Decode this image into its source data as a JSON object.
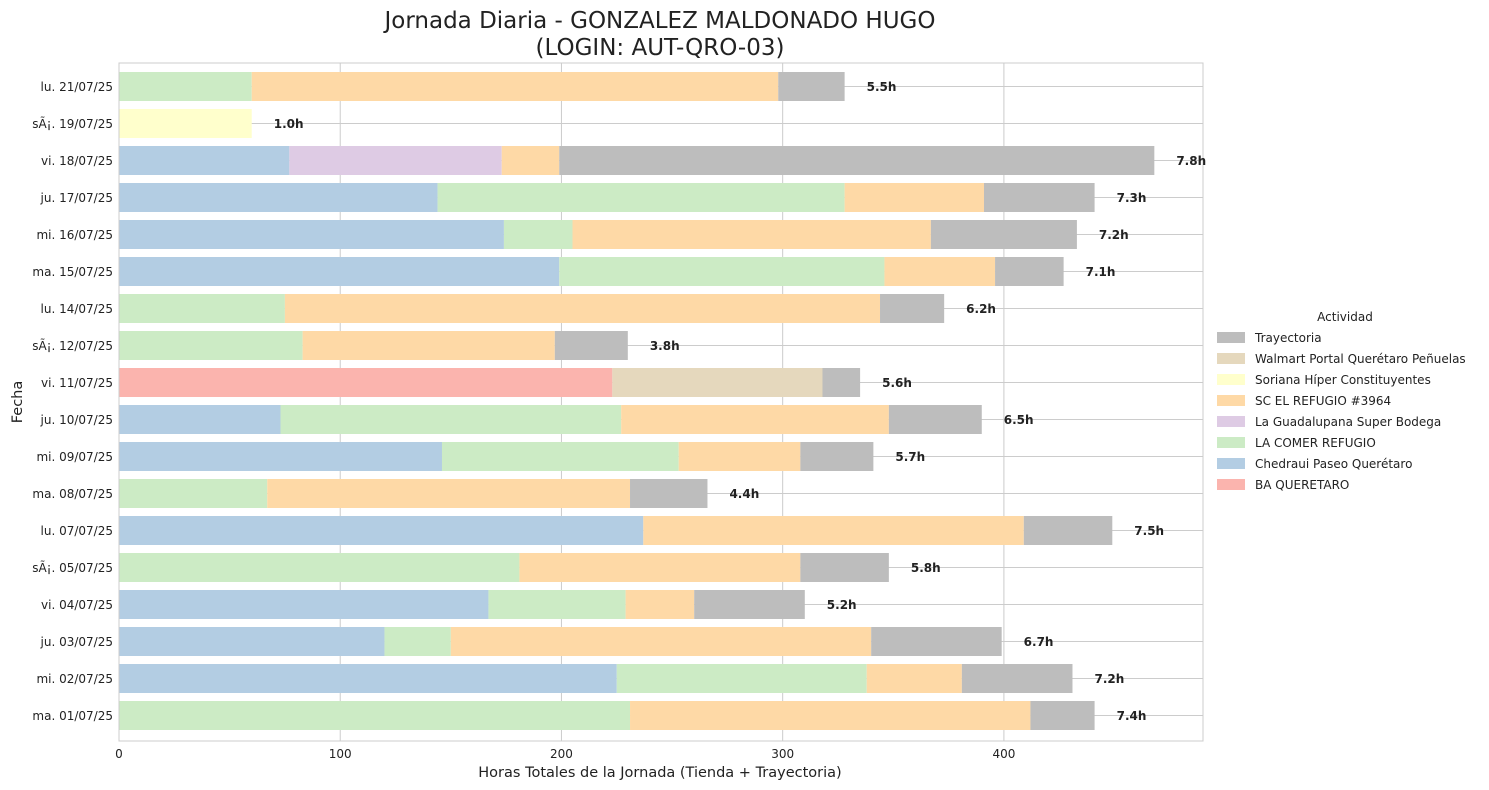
{
  "chart_data": {
    "type": "bar",
    "orientation": "horizontal",
    "stacked": true,
    "title_line1": "Jornada Diaria - GONZALEZ MALDONADO HUGO",
    "title_line2": "(LOGIN: AUT-QRO-03)",
    "xlabel": "Horas Totales de la Jornada (Tienda + Trayectoria)",
    "ylabel": "Fecha",
    "xlim": [
      0,
      490
    ],
    "xticks": [
      0,
      100,
      200,
      300,
      400
    ],
    "grid": true,
    "legend_title": "Actividad",
    "legend_placement": "center-right",
    "series": [
      {
        "name": "BA QUERETARO",
        "color": "#fbb4ae"
      },
      {
        "name": "Chedraui Paseo Querétaro",
        "color": "#b3cde3"
      },
      {
        "name": "LA COMER REFUGIO",
        "color": "#ccebc5"
      },
      {
        "name": "La Guadalupana Super Bodega",
        "color": "#decbe4"
      },
      {
        "name": "SC EL REFUGIO #3964",
        "color": "#fed9a6"
      },
      {
        "name": "Soriana Híper Constituyentes",
        "color": "#ffffcc"
      },
      {
        "name": "Walmart Portal Querétaro Peñuelas",
        "color": "#e5d8bd"
      },
      {
        "name": "Trayectoria",
        "color": "#bdbdbd"
      }
    ],
    "legend_order": [
      "Trayectoria",
      "Walmart Portal Querétaro Peñuelas",
      "Soriana Híper Constituyentes",
      "SC EL REFUGIO #3964",
      "La Guadalupana Super Bodega",
      "LA COMER REFUGIO",
      "Chedraui Paseo Querétaro",
      "BA QUERETARO"
    ],
    "rows": [
      {
        "label": "lu. 21/07/25",
        "total": "5.5h",
        "segments": [
          [
            "LA COMER REFUGIO",
            60
          ],
          [
            "SC EL REFUGIO #3964",
            238
          ],
          [
            "Trayectoria",
            30
          ]
        ]
      },
      {
        "label": "sÃ¡. 19/07/25",
        "total": "1.0h",
        "segments": [
          [
            "Soriana Híper Constituyentes",
            60
          ]
        ]
      },
      {
        "label": "vi. 18/07/25",
        "total": "7.8h",
        "segments": [
          [
            "Chedraui Paseo Querétaro",
            77
          ],
          [
            "La Guadalupana Super Bodega",
            96
          ],
          [
            "SC EL REFUGIO #3964",
            26
          ],
          [
            "Trayectoria",
            269
          ]
        ]
      },
      {
        "label": "ju. 17/07/25",
        "total": "7.3h",
        "segments": [
          [
            "Chedraui Paseo Querétaro",
            144
          ],
          [
            "LA COMER REFUGIO",
            184
          ],
          [
            "SC EL REFUGIO #3964",
            63
          ],
          [
            "Trayectoria",
            50
          ]
        ]
      },
      {
        "label": "mi. 16/07/25",
        "total": "7.2h",
        "segments": [
          [
            "Chedraui Paseo Querétaro",
            174
          ],
          [
            "LA COMER REFUGIO",
            31
          ],
          [
            "SC EL REFUGIO #3964",
            162
          ],
          [
            "Trayectoria",
            66
          ]
        ]
      },
      {
        "label": "ma. 15/07/25",
        "total": "7.1h",
        "segments": [
          [
            "Chedraui Paseo Querétaro",
            199
          ],
          [
            "LA COMER REFUGIO",
            147
          ],
          [
            "SC EL REFUGIO #3964",
            50
          ],
          [
            "Trayectoria",
            31
          ]
        ]
      },
      {
        "label": "lu. 14/07/25",
        "total": "6.2h",
        "segments": [
          [
            "LA COMER REFUGIO",
            75
          ],
          [
            "SC EL REFUGIO #3964",
            269
          ],
          [
            "Trayectoria",
            29
          ]
        ]
      },
      {
        "label": "sÃ¡. 12/07/25",
        "total": "3.8h",
        "segments": [
          [
            "LA COMER REFUGIO",
            83
          ],
          [
            "SC EL REFUGIO #3964",
            114
          ],
          [
            "Trayectoria",
            33
          ]
        ]
      },
      {
        "label": "vi. 11/07/25",
        "total": "5.6h",
        "segments": [
          [
            "BA QUERETARO",
            223
          ],
          [
            "Walmart Portal Querétaro Peñuelas",
            95
          ],
          [
            "Trayectoria",
            17
          ]
        ]
      },
      {
        "label": "ju. 10/07/25",
        "total": "6.5h",
        "segments": [
          [
            "Chedraui Paseo Querétaro",
            73
          ],
          [
            "LA COMER REFUGIO",
            154
          ],
          [
            "SC EL REFUGIO #3964",
            121
          ],
          [
            "Trayectoria",
            42
          ]
        ]
      },
      {
        "label": "mi. 09/07/25",
        "total": "5.7h",
        "segments": [
          [
            "Chedraui Paseo Querétaro",
            146
          ],
          [
            "LA COMER REFUGIO",
            107
          ],
          [
            "SC EL REFUGIO #3964",
            55
          ],
          [
            "Trayectoria",
            33
          ]
        ]
      },
      {
        "label": "ma. 08/07/25",
        "total": "4.4h",
        "segments": [
          [
            "LA COMER REFUGIO",
            67
          ],
          [
            "SC EL REFUGIO #3964",
            164
          ],
          [
            "Trayectoria",
            35
          ]
        ]
      },
      {
        "label": "lu. 07/07/25",
        "total": "7.5h",
        "segments": [
          [
            "Chedraui Paseo Querétaro",
            237
          ],
          [
            "SC EL REFUGIO #3964",
            172
          ],
          [
            "Trayectoria",
            40
          ]
        ]
      },
      {
        "label": "sÃ¡. 05/07/25",
        "total": "5.8h",
        "segments": [
          [
            "LA COMER REFUGIO",
            181
          ],
          [
            "SC EL REFUGIO #3964",
            127
          ],
          [
            "Trayectoria",
            40
          ]
        ]
      },
      {
        "label": "vi. 04/07/25",
        "total": "5.2h",
        "segments": [
          [
            "Chedraui Paseo Querétaro",
            167
          ],
          [
            "LA COMER REFUGIO",
            62
          ],
          [
            "SC EL REFUGIO #3964",
            31
          ],
          [
            "Trayectoria",
            50
          ]
        ]
      },
      {
        "label": "ju. 03/07/25",
        "total": "6.7h",
        "segments": [
          [
            "Chedraui Paseo Querétaro",
            120
          ],
          [
            "LA COMER REFUGIO",
            30
          ],
          [
            "SC EL REFUGIO #3964",
            190
          ],
          [
            "Trayectoria",
            59
          ]
        ]
      },
      {
        "label": "mi. 02/07/25",
        "total": "7.2h",
        "segments": [
          [
            "Chedraui Paseo Querétaro",
            225
          ],
          [
            "LA COMER REFUGIO",
            113
          ],
          [
            "SC EL REFUGIO #3964",
            43
          ],
          [
            "Trayectoria",
            50
          ]
        ]
      },
      {
        "label": "ma. 01/07/25",
        "total": "7.4h",
        "segments": [
          [
            "LA COMER REFUGIO",
            231
          ],
          [
            "SC EL REFUGIO #3964",
            181
          ],
          [
            "Trayectoria",
            29
          ]
        ]
      }
    ]
  }
}
